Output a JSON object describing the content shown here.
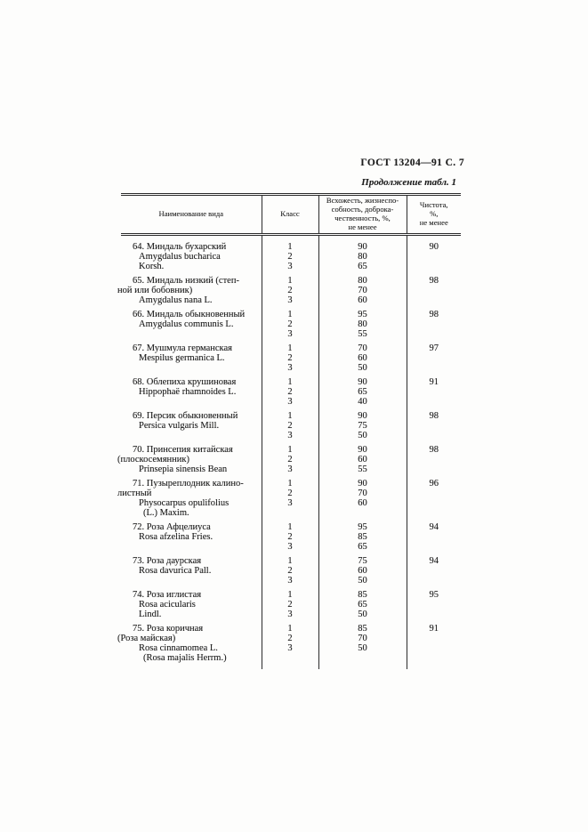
{
  "page": {
    "doc_header": "ГОСТ 13204—91 С. 7",
    "table_caption": "Продолжение табл. 1"
  },
  "table": {
    "header": {
      "name_lines": [
        "Наименование вида"
      ],
      "class_lines": [
        "Класс"
      ],
      "germination_lines": [
        "Всхожесть, жизнеспо-",
        "собность, доброка-",
        "чественность, %,",
        "не менее"
      ],
      "purity_lines": [
        "Чистота,",
        "%,",
        "не менее"
      ]
    },
    "rows": [
      {
        "name": [
          {
            "t": "64. Миндаль бухарский",
            "i": "first"
          },
          {
            "t": "Amygdalus bucharica",
            "i": "latin"
          },
          {
            "t": "Korsh.",
            "i": "latin"
          }
        ],
        "classes": [
          "1",
          "2",
          "3"
        ],
        "germination": [
          "90",
          "80",
          "65"
        ],
        "purity": "90"
      },
      {
        "name": [
          {
            "t": "65. Миндаль низкий (степ-",
            "i": "first"
          },
          {
            "t": "ной или бобовник)",
            "i": "hang"
          },
          {
            "t": "Amygdalus nana L.",
            "i": "latin"
          }
        ],
        "classes": [
          "1",
          "2",
          "3"
        ],
        "germination": [
          "80",
          "70",
          "60"
        ],
        "purity": "98"
      },
      {
        "name": [
          {
            "t": "66. Миндаль обыкновенный",
            "i": "first"
          },
          {
            "t": "Amygdalus communis L.",
            "i": "latin"
          }
        ],
        "classes": [
          "1",
          "2",
          "3"
        ],
        "germination": [
          "95",
          "80",
          "55"
        ],
        "purity": "98"
      },
      {
        "name": [
          {
            "t": "67. Мушмула германская",
            "i": "first"
          },
          {
            "t": "Mespilus germanica L.",
            "i": "latin"
          }
        ],
        "classes": [
          "1",
          "2",
          "3"
        ],
        "germination": [
          "70",
          "60",
          "50"
        ],
        "purity": "97"
      },
      {
        "name": [
          {
            "t": "68. Облепиха крушиновая",
            "i": "first"
          },
          {
            "t": "Hippophaë rhamnoides L.",
            "i": "latin"
          }
        ],
        "classes": [
          "1",
          "2",
          "3"
        ],
        "germination": [
          "90",
          "65",
          "40"
        ],
        "purity": "91"
      },
      {
        "name": [
          {
            "t": "69. Персик обыкновенный",
            "i": "first"
          },
          {
            "t": "Persica vulgaris Mill.",
            "i": "latin"
          }
        ],
        "classes": [
          "1",
          "2",
          "3"
        ],
        "germination": [
          "90",
          "75",
          "50"
        ],
        "purity": "98"
      },
      {
        "name": [
          {
            "t": "70. Принсепия китайская",
            "i": "first"
          },
          {
            "t": "(плоскосемянник)",
            "i": "hang"
          },
          {
            "t": "Prinsepia sinensis Bean",
            "i": "latin"
          }
        ],
        "classes": [
          "1",
          "2",
          "3"
        ],
        "germination": [
          "90",
          "60",
          "55"
        ],
        "purity": "98"
      },
      {
        "name": [
          {
            "t": "71. Пузыреплодник калино-",
            "i": "first"
          },
          {
            "t": "листный",
            "i": "hang"
          },
          {
            "t": "Physocarpus opulifolius",
            "i": "latin"
          },
          {
            "t": "(L.) Maxim.",
            "i": "latin2"
          }
        ],
        "classes": [
          "1",
          "2",
          "3"
        ],
        "germination": [
          "90",
          "70",
          "60"
        ],
        "purity": "96"
      },
      {
        "name": [
          {
            "t": "72. Роза Афцелиуса",
            "i": "first"
          },
          {
            "t": "Rosa afzelina Fries.",
            "i": "latin"
          }
        ],
        "classes": [
          "1",
          "2",
          "3"
        ],
        "germination": [
          "95",
          "85",
          "65"
        ],
        "purity": "94"
      },
      {
        "name": [
          {
            "t": "73. Роза даурская",
            "i": "first"
          },
          {
            "t": "Rosa davurica Pall.",
            "i": "latin"
          }
        ],
        "classes": [
          "1",
          "2",
          "3"
        ],
        "germination": [
          "75",
          "60",
          "50"
        ],
        "purity": "94"
      },
      {
        "name": [
          {
            "t": "74. Роза иглистая",
            "i": "first"
          },
          {
            "t": "Rosa  acicularis",
            "i": "latin"
          },
          {
            "t": "Lindl.",
            "i": "latin"
          }
        ],
        "classes": [
          "1",
          "2",
          "3"
        ],
        "germination": [
          "85",
          "65",
          "50"
        ],
        "purity": "95"
      },
      {
        "name": [
          {
            "t": "75. Роза коричная",
            "i": "first"
          },
          {
            "t": "(Роза майская)",
            "i": "hang"
          },
          {
            "t": "Rosa cinnamomea L.",
            "i": "latin"
          },
          {
            "t": "(Rosa majalis Herrm.)",
            "i": "latin2"
          }
        ],
        "classes": [
          "1",
          "2",
          "3"
        ],
        "germination": [
          "85",
          "70",
          "50"
        ],
        "purity": "91"
      }
    ]
  }
}
